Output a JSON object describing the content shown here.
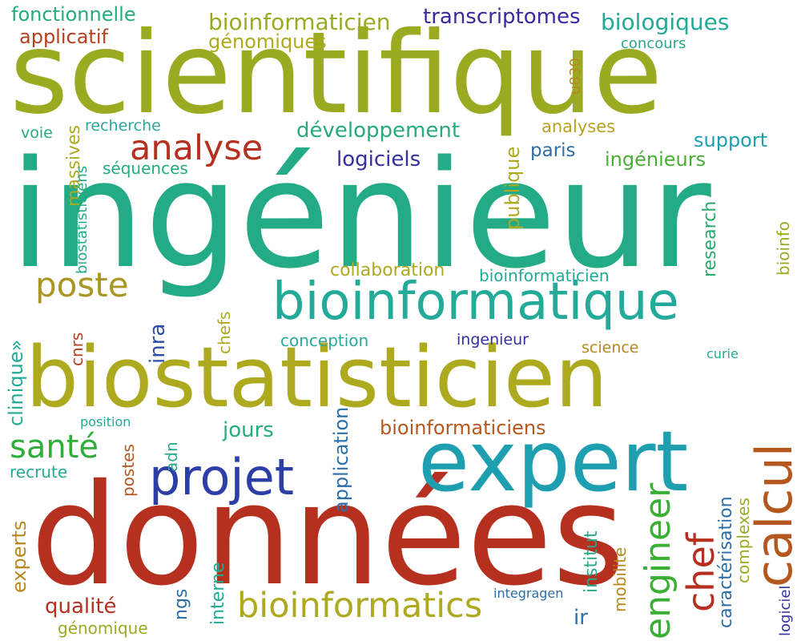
{
  "words": [
    {
      "text": "données",
      "color": "#b5301f"
    },
    {
      "text": "ingénieur",
      "color": "#22ab84"
    },
    {
      "text": "scientifique",
      "color": "#9aab22"
    },
    {
      "text": "biostatisticien",
      "color": "#aeaa20"
    },
    {
      "text": "expert",
      "color": "#1e9fb0"
    },
    {
      "text": "bioinformatique",
      "color": "#23aa98"
    },
    {
      "text": "projet",
      "color": "#2d3ea6"
    },
    {
      "text": "calcul",
      "color": "#b5581f"
    },
    {
      "text": "engineer",
      "color": "#3aae35"
    },
    {
      "text": "bioinformatics",
      "color": "#aeaa20"
    },
    {
      "text": "analyse",
      "color": "#b53020"
    },
    {
      "text": "poste",
      "color": "#aa9622"
    },
    {
      "text": "santé",
      "color": "#2fae3a"
    },
    {
      "text": "chef",
      "color": "#b5301f"
    },
    {
      "text": "développement",
      "color": "#26ab7e"
    },
    {
      "text": "bioinformaticien",
      "color": "#9aab22"
    },
    {
      "text": "transcriptomes",
      "color": "#3a2aa0"
    },
    {
      "text": "biologiques",
      "color": "#22aa95"
    },
    {
      "text": "fonctionnelle",
      "color": "#26ab7e"
    },
    {
      "text": "applicatif",
      "color": "#b5401f"
    },
    {
      "text": "génomiques",
      "color": "#aeaa20"
    },
    {
      "text": "concours",
      "color": "#2aa88a"
    },
    {
      "text": "u830",
      "color": "#b8881f"
    },
    {
      "text": "voie",
      "color": "#26ab7e"
    },
    {
      "text": "recherche",
      "color": "#2aa89a"
    },
    {
      "text": "massives",
      "color": "#aeaa20"
    },
    {
      "text": "biostatisticiens",
      "color": "#22ab84"
    },
    {
      "text": "séquences",
      "color": "#26ab7e"
    },
    {
      "text": "logiciels",
      "color": "#35309f"
    },
    {
      "text": "analyses",
      "color": "#b8a020"
    },
    {
      "text": "publique",
      "color": "#aeaa20"
    },
    {
      "text": "paris",
      "color": "#2d6ea6"
    },
    {
      "text": "support",
      "color": "#1e9fb0"
    },
    {
      "text": "ingénieurs",
      "color": "#48ae34"
    },
    {
      "text": "research",
      "color": "#28ab6e"
    },
    {
      "text": "bioinfo",
      "color": "#9aab22"
    },
    {
      "text": "collaboration",
      "color": "#aeaa20"
    },
    {
      "text": "bioinformaticien",
      "color": "#22aa95"
    },
    {
      "text": "clinique»",
      "color": "#22aa95"
    },
    {
      "text": "cnrs",
      "color": "#b5401f"
    },
    {
      "text": "chefs",
      "color": "#aeaa20"
    },
    {
      "text": "inra",
      "color": "#2d4ea6"
    },
    {
      "text": "conception",
      "color": "#2aa89a"
    },
    {
      "text": "ingenieur",
      "color": "#35309f"
    },
    {
      "text": "science",
      "color": "#b8881f"
    },
    {
      "text": "curie",
      "color": "#22aa95"
    },
    {
      "text": "position",
      "color": "#22aa95"
    },
    {
      "text": "jours",
      "color": "#26ab7e"
    },
    {
      "text": "application",
      "color": "#2d6ea6"
    },
    {
      "text": "bioinformaticiens",
      "color": "#b5581f"
    },
    {
      "text": "adn",
      "color": "#2aa88a"
    },
    {
      "text": "postes",
      "color": "#b5581f"
    },
    {
      "text": "recrute",
      "color": "#22aa95"
    },
    {
      "text": "experts",
      "color": "#b8881f"
    },
    {
      "text": "qualité",
      "color": "#b5301f"
    },
    {
      "text": "génomique",
      "color": "#9aab22"
    },
    {
      "text": "ngs",
      "color": "#2d6ea6"
    },
    {
      "text": "interne",
      "color": "#22aa95"
    },
    {
      "text": "institut",
      "color": "#2aa88a"
    },
    {
      "text": "mobilite",
      "color": "#b8881f"
    },
    {
      "text": "integragen",
      "color": "#2d6ea6"
    },
    {
      "text": "ir",
      "color": "#2d6ea6"
    },
    {
      "text": "caractérisation",
      "color": "#2d6ea6"
    },
    {
      "text": "complexes",
      "color": "#9aab22"
    },
    {
      "text": "logiciel",
      "color": "#35309f"
    }
  ]
}
